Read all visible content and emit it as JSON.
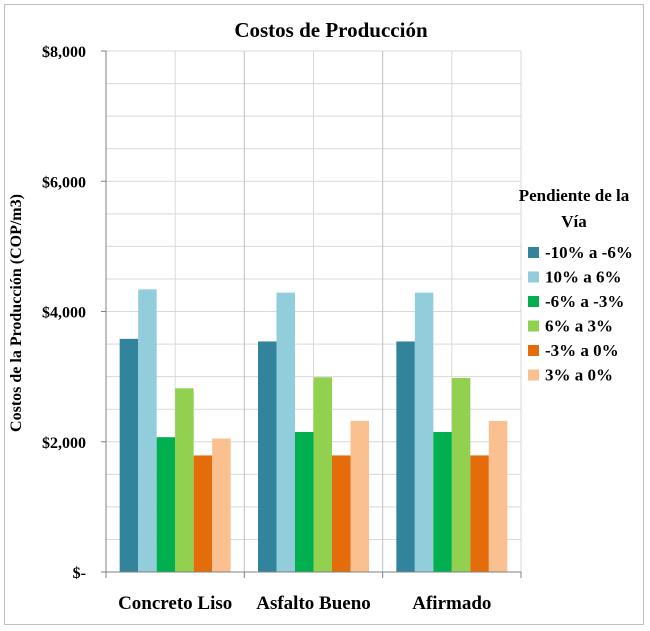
{
  "chart_data": {
    "type": "bar",
    "title": "Costos de Producción",
    "xlabel": "",
    "ylabel": "Costos de la Producción (COP/m3)",
    "ylim": [
      0,
      8000
    ],
    "yticks": [
      0,
      2000,
      4000,
      6000,
      8000
    ],
    "ytick_labels": [
      "$-",
      "$2,000",
      "$4,000",
      "$6,000",
      "$8,000"
    ],
    "categories": [
      "Concreto Liso",
      "Asfalto Bueno",
      "Afirmado"
    ],
    "grid": true,
    "legend_title": "Pendiente de la Vía",
    "legend_position": "right",
    "series": [
      {
        "name": "-10% a -6%",
        "color": "#31849B",
        "values": [
          3580,
          3540,
          3540
        ]
      },
      {
        "name": "10% a 6%",
        "color": "#92CDDC",
        "values": [
          4340,
          4290,
          4290
        ]
      },
      {
        "name": "-6% a -3%",
        "color": "#00B050",
        "values": [
          2070,
          2150,
          2150
        ]
      },
      {
        "name": "6% a 3%",
        "color": "#92D050",
        "values": [
          2820,
          2990,
          2980
        ]
      },
      {
        "name": "-3% a 0%",
        "color": "#E46C0A",
        "values": [
          1790,
          1790,
          1790
        ]
      },
      {
        "name": "3% a 0%",
        "color": "#FAC090",
        "values": [
          2050,
          2320,
          2320
        ]
      }
    ]
  }
}
